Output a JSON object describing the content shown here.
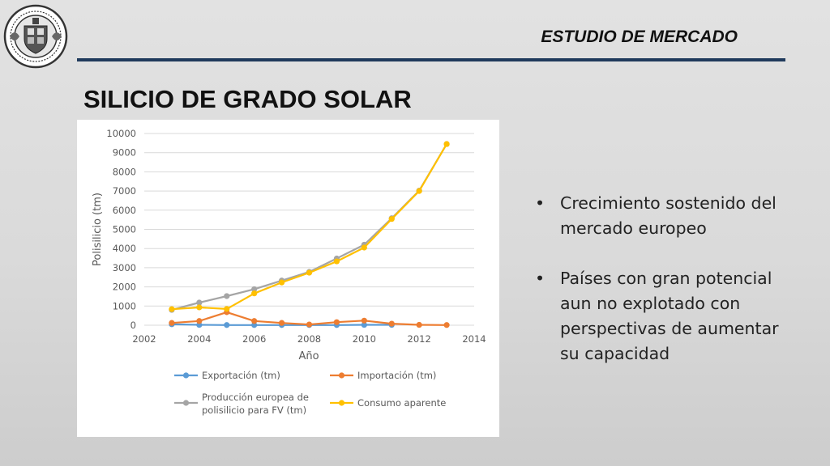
{
  "header": {
    "title": "ESTUDIO DE MERCADO"
  },
  "slide": {
    "title": "SILICIO DE GRADO SOLAR"
  },
  "bullets": [
    {
      "text": "Crecimiento sostenido del mercado europeo"
    },
    {
      "text": "Países con gran potencial aun no explotado con perspectivas de aumentar su capacidad"
    }
  ],
  "chart_data": {
    "type": "line",
    "xlabel": "Año",
    "ylabel": "Polisilicio (tm)",
    "xlim": [
      2002,
      2014
    ],
    "ylim": [
      0,
      10000
    ],
    "xticks": [
      2002,
      2004,
      2006,
      2008,
      2010,
      2012,
      2014
    ],
    "yticks": [
      0,
      1000,
      2000,
      3000,
      4000,
      5000,
      6000,
      7000,
      8000,
      9000,
      10000
    ],
    "grid": "horizontal",
    "legend_position": "bottom",
    "series": [
      {
        "name": "Exportación (tm)",
        "color": "#5b9bd5",
        "x": [
          2003,
          2004,
          2005,
          2006,
          2007,
          2008,
          2009,
          2010,
          2011
        ],
        "y": [
          50,
          20,
          10,
          10,
          10,
          10,
          10,
          20,
          20
        ]
      },
      {
        "name": "Importación (tm)",
        "color": "#ed7d31",
        "x": [
          2003,
          2004,
          2005,
          2006,
          2007,
          2008,
          2009,
          2010,
          2011,
          2012,
          2013
        ],
        "y": [
          120,
          220,
          680,
          220,
          120,
          40,
          160,
          240,
          80,
          20,
          10
        ]
      },
      {
        "name": "Producción europea de polisilicio para FV (tm)",
        "color": "#a5a5a5",
        "x": [
          2003,
          2004,
          2005,
          2006,
          2007,
          2008,
          2009,
          2010,
          2011,
          2012,
          2013
        ],
        "y": [
          800,
          1180,
          1520,
          1880,
          2330,
          2780,
          3480,
          4200,
          5580,
          7020,
          9450
        ]
      },
      {
        "name": "Consumo aparente",
        "color": "#ffc000",
        "x": [
          2003,
          2004,
          2005,
          2006,
          2007,
          2008,
          2009,
          2010,
          2011,
          2012,
          2013
        ],
        "y": [
          840,
          930,
          850,
          1660,
          2230,
          2740,
          3330,
          4050,
          5540,
          7000,
          9450
        ]
      }
    ]
  }
}
